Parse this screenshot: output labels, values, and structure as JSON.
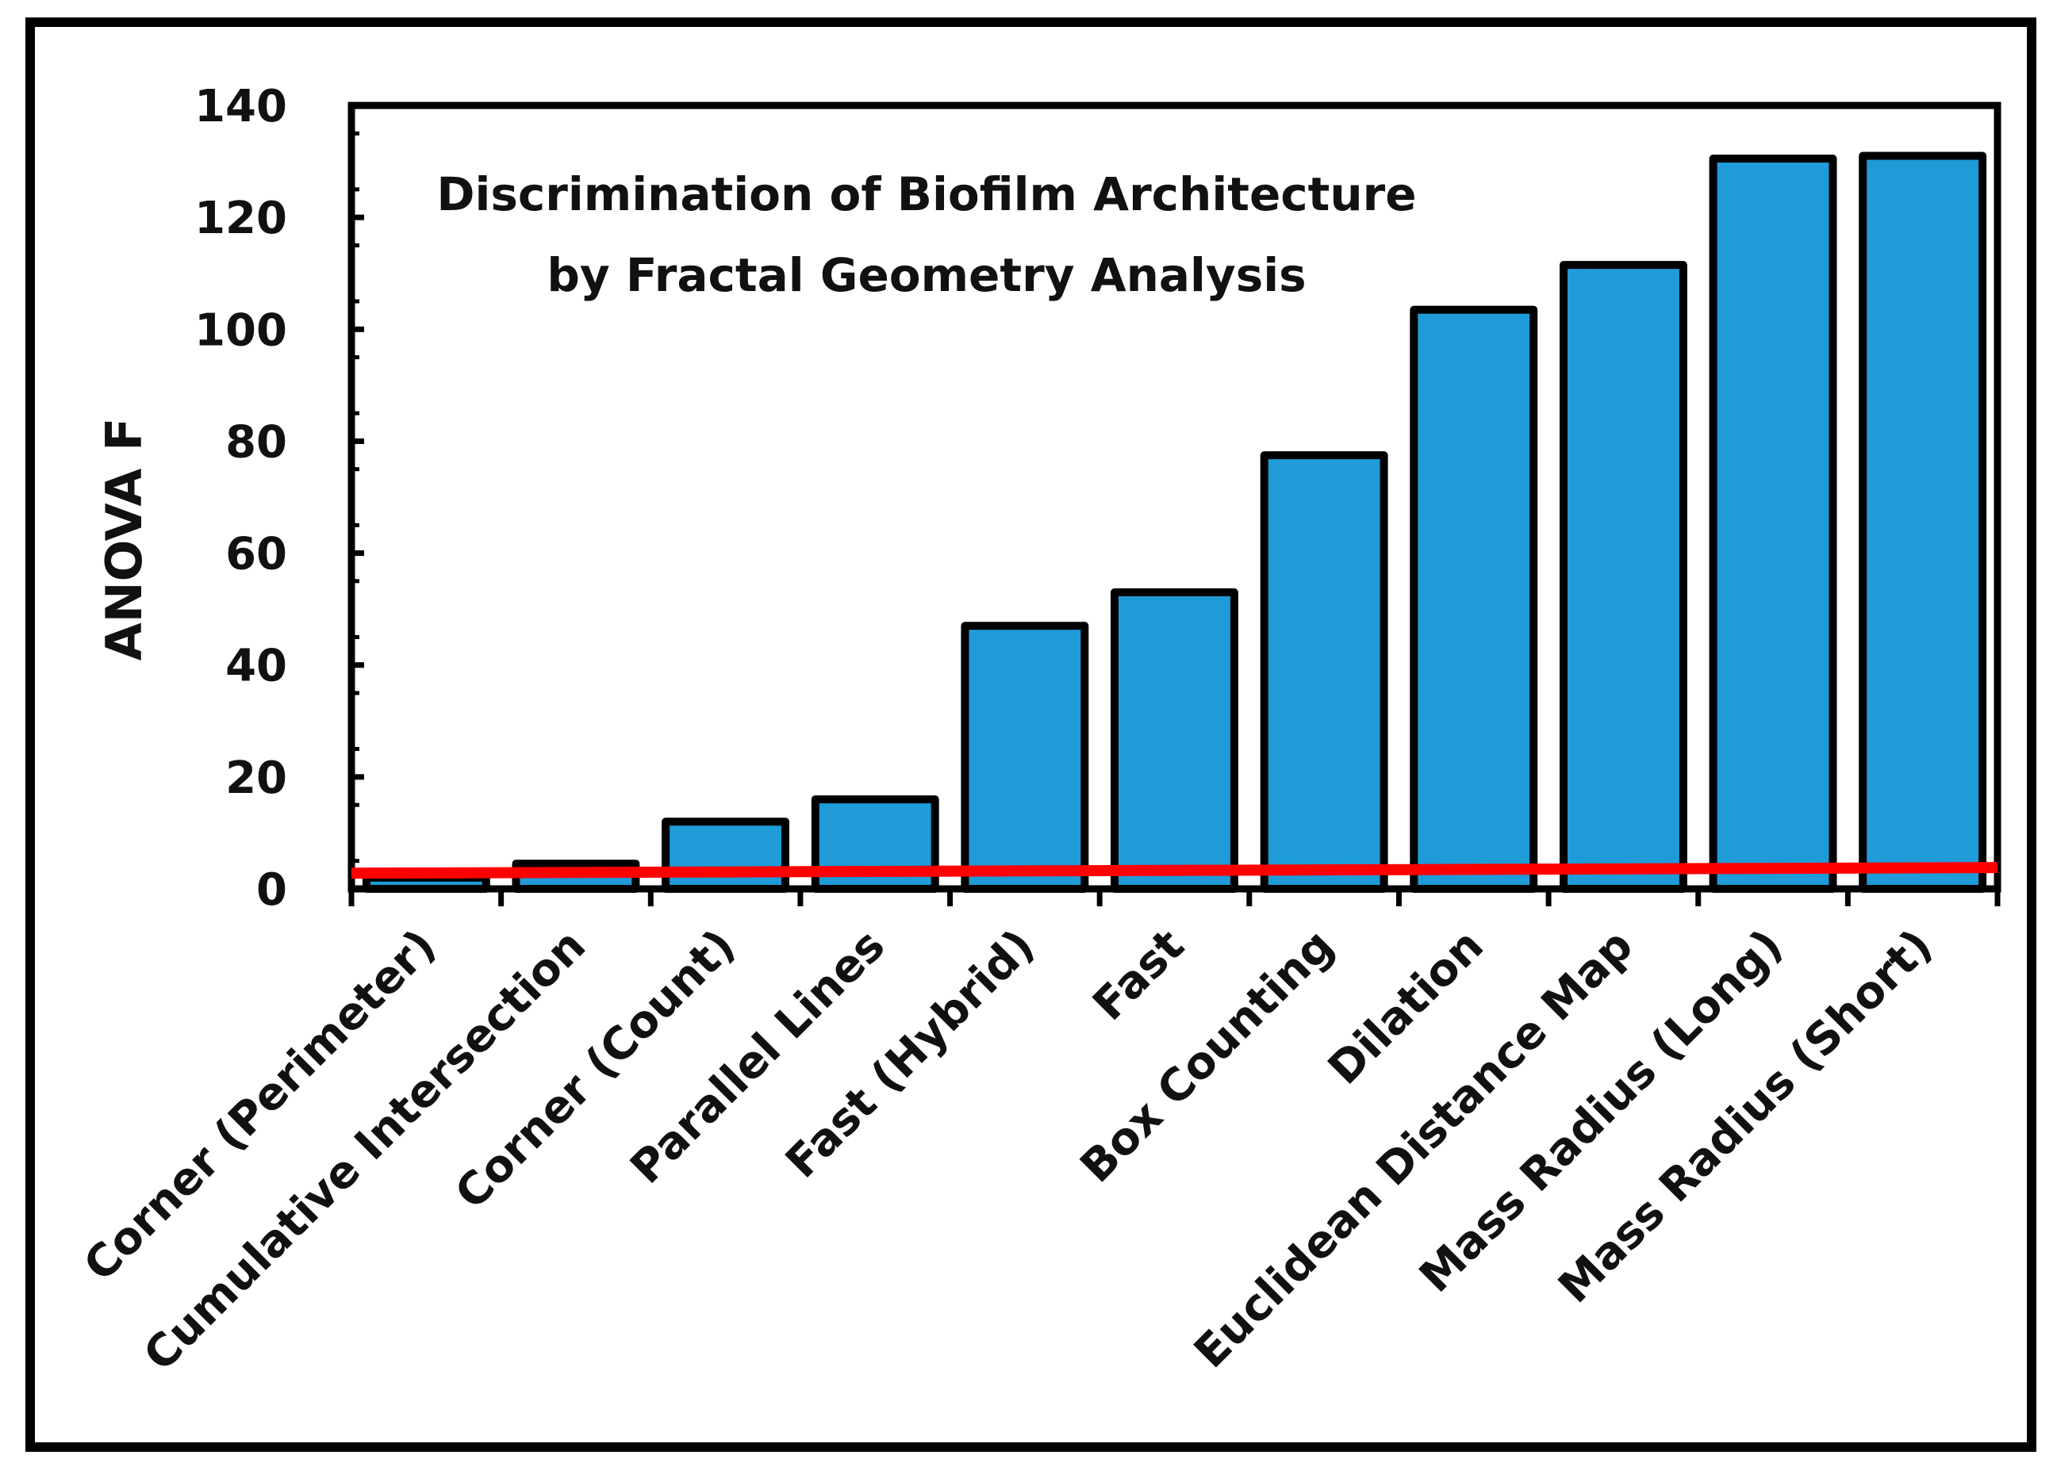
{
  "chart_data": {
    "type": "bar",
    "title_lines": [
      "Discrimination of Biofilm Architecture",
      "by Fractal Geometry Analysis"
    ],
    "xlabel": "",
    "ylabel": "ANOVA F",
    "ylim": [
      0,
      140
    ],
    "yticks": [
      "0",
      "20",
      "40",
      "60",
      "80",
      "100",
      "120",
      "140"
    ],
    "categories": [
      "Corner (Perimeter)",
      "Cumulative Intersection",
      "Corner (Count)",
      "Parallel Lines",
      "Fast (Hybrid)",
      "Fast",
      "Box Counting",
      "Dilation",
      "Euclidean Distance Map",
      "Mass Radius (Long)",
      "Mass Radius (Short)"
    ],
    "values": [
      2,
      4.5,
      12,
      16,
      47,
      53,
      77.5,
      103.5,
      111.5,
      130.5,
      131
    ],
    "reference_line": {
      "value_start": 2.8,
      "value_end": 3.8,
      "color": "#ff0000"
    },
    "bar_color": "#1f9bd8",
    "grid": false,
    "legend": "none"
  }
}
